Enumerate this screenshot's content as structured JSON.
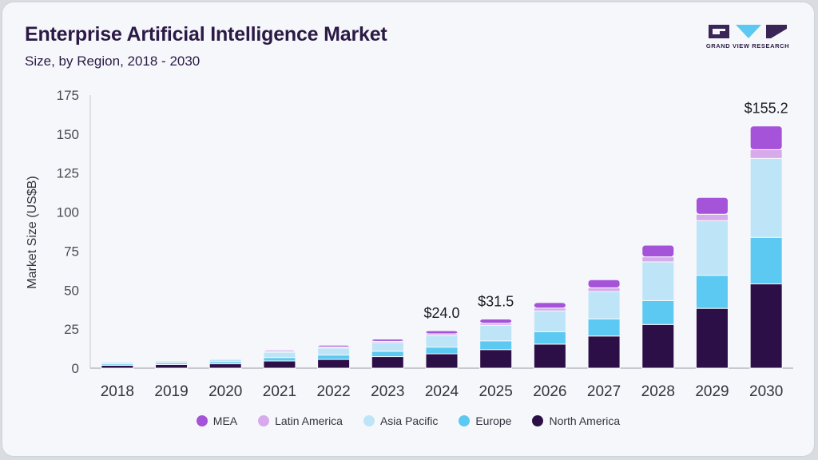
{
  "header": {
    "title": "Enterprise Artificial Intelligence Market",
    "subtitle": "Size, by Region, 2018 - 2030",
    "logo_text": "GRAND VIEW RESEARCH"
  },
  "colors": {
    "North America": "#2d0f47",
    "Europe": "#5bc9f2",
    "Asia Pacific": "#bde5f7",
    "Latin America": "#d7abeb",
    "MEA": "#a553d8",
    "logo_dark": "#3a2557",
    "logo_accent": "#5bc9f2"
  },
  "chart_data": {
    "type": "bar",
    "stacked": true,
    "categories": [
      "2018",
      "2019",
      "2020",
      "2021",
      "2022",
      "2023",
      "2024",
      "2025",
      "2026",
      "2027",
      "2028",
      "2029",
      "2030"
    ],
    "series": [
      {
        "name": "North America",
        "values": [
          1.8,
          2.3,
          2.8,
          4.6,
          5.6,
          7.4,
          9.2,
          11.9,
          15.4,
          20.6,
          28.0,
          38.3,
          54.0
        ]
      },
      {
        "name": "Europe",
        "values": [
          0.9,
          1.1,
          1.3,
          2.2,
          2.8,
          3.4,
          4.3,
          5.6,
          8.0,
          11.0,
          15.3,
          21.2,
          29.8
        ]
      },
      {
        "name": "Asia Pacific",
        "values": [
          1.1,
          1.2,
          1.6,
          3.4,
          4.5,
          5.6,
          7.4,
          10.0,
          13.3,
          17.5,
          24.8,
          35.0,
          50.6
        ]
      },
      {
        "name": "Latin America",
        "values": [
          0.2,
          0.2,
          0.3,
          0.6,
          0.7,
          0.8,
          1.1,
          1.3,
          1.8,
          2.4,
          3.2,
          4.1,
          5.6
        ]
      },
      {
        "name": "MEA",
        "values": [
          0.2,
          0.2,
          0.4,
          0.8,
          1.1,
          1.4,
          2.0,
          2.7,
          3.5,
          5.2,
          7.5,
          10.8,
          15.2
        ]
      }
    ],
    "totals_labels": [
      {
        "category": "2024",
        "text": "$24.0"
      },
      {
        "category": "2025",
        "text": "$31.5"
      },
      {
        "category": "2030",
        "text": "$155.2"
      }
    ],
    "title": "Enterprise Artificial Intelligence Market",
    "subtitle": "Size, by Region, 2018 - 2030",
    "xlabel": "",
    "ylabel": "Market Size (US$B)",
    "ylim": [
      0,
      175
    ],
    "yticks": [
      0,
      25,
      50,
      75,
      100,
      125,
      150,
      175
    ],
    "grid": false,
    "legend_position": "bottom",
    "legend_order": [
      "MEA",
      "Latin America",
      "Asia Pacific",
      "Europe",
      "North America"
    ]
  }
}
